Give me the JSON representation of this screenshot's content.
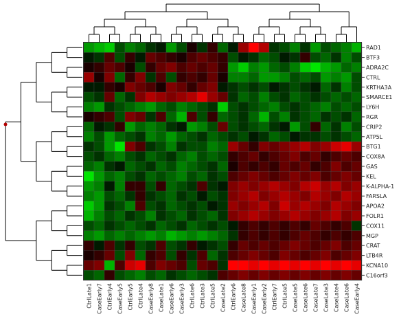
{
  "chart_data": {
    "type": "heatmap",
    "title": "",
    "xlabel": "",
    "ylabel": "",
    "columns": [
      "CtrlLate1",
      "CaseEarly7",
      "CtrlEarly4",
      "CaseEarly5",
      "CtrlEarly5",
      "CtrlLate4",
      "CaseEarly8",
      "CaseLate1",
      "CaseEarly6",
      "CaseEarly3",
      "CtrlLate6",
      "CtrlLate3",
      "CtrlLate5",
      "CaseLate2",
      "CtrlEarly6",
      "CaseLate8",
      "CaseEarly1",
      "CaseEarly2",
      "CtrlEarly7",
      "CtrlLate5",
      "CaseLate5",
      "CaseLate6",
      "CaseLate7",
      "CaseLate3",
      "CaseLate4",
      "CaseLate6",
      "CaseEarly4"
    ],
    "rows": [
      "RAD1",
      "BTF3",
      "ADRA2C",
      "CTRL",
      "KRTHA3A",
      "SMARCE1",
      "LY6H",
      "RGR",
      "CRIP2",
      "ATP5L",
      "BTG1",
      "COX8A",
      "GAS",
      "KEL",
      "K-ALPHA-1",
      "FARSLA",
      "APOA2",
      "FOLR1",
      "COX11",
      "MGP",
      "CRAT",
      "LTB4R",
      "KCNA10",
      "C16orf3"
    ],
    "color_scale": {
      "low": "#00ff00",
      "mid": "#000000",
      "high": "#ff0000"
    },
    "values": [
      [
        -0.6,
        -0.7,
        -0.8,
        -0.3,
        -0.5,
        -0.4,
        -0.2,
        -0.1,
        -0.6,
        -0.3,
        0.1,
        -0.2,
        0.2,
        -0.4,
        -0.1,
        0.6,
        1.0,
        0.7,
        -0.2,
        -0.3,
        -0.5,
        -0.2,
        -0.6,
        -0.3,
        -0.4,
        -0.5,
        -0.7
      ],
      [
        -0.1,
        -0.2,
        0.3,
        -0.3,
        0.2,
        -0.1,
        0.4,
        0.3,
        0.2,
        0.1,
        0.3,
        0.4,
        0.3,
        0.2,
        -0.3,
        -0.1,
        -0.2,
        -0.4,
        -0.3,
        -0.1,
        -0.2,
        0.2,
        -0.3,
        -0.4,
        -0.2,
        -0.5,
        -0.3
      ],
      [
        0.1,
        0.2,
        0.4,
        0.3,
        0.1,
        -0.3,
        0.2,
        0.4,
        0.5,
        0.3,
        0.4,
        0.3,
        0.4,
        0.2,
        -0.6,
        -0.8,
        -0.5,
        -0.6,
        -0.4,
        -0.3,
        -0.5,
        -0.8,
        -0.9,
        -0.7,
        -0.6,
        -0.4,
        -0.5
      ],
      [
        0.6,
        0.1,
        0.5,
        -0.4,
        0.2,
        0.5,
        -0.2,
        0.3,
        -0.3,
        0.2,
        0.3,
        0.2,
        0.4,
        0.1,
        -0.5,
        -0.5,
        -0.4,
        -0.6,
        -0.6,
        -0.5,
        -0.3,
        -0.4,
        -0.3,
        -0.6,
        -0.5,
        -0.6,
        -0.3
      ],
      [
        -0.1,
        -0.1,
        0.2,
        0.1,
        0.5,
        0.4,
        0.3,
        0.1,
        0.5,
        0.4,
        0.2,
        0.4,
        0.5,
        -0.1,
        -0.2,
        -0.3,
        -0.2,
        -0.3,
        -0.1,
        -0.2,
        -0.3,
        -0.2,
        -0.1,
        -0.4,
        -0.2,
        -0.5,
        -0.3
      ],
      [
        -0.3,
        -0.2,
        0.4,
        -0.4,
        -0.2,
        0.5,
        0.7,
        0.6,
        0.5,
        0.6,
        0.7,
        0.9,
        0.6,
        0.4,
        -0.2,
        -0.4,
        -0.3,
        -0.5,
        -0.3,
        -0.2,
        -0.4,
        -0.3,
        -0.2,
        -0.3,
        -0.4,
        -0.3,
        -0.4
      ],
      [
        -0.5,
        -0.6,
        -0.2,
        -0.3,
        -0.4,
        -0.5,
        -0.6,
        -0.4,
        -0.3,
        -0.5,
        -0.4,
        -0.3,
        -0.2,
        -0.8,
        -0.3,
        -0.2,
        -0.3,
        -0.4,
        -0.5,
        -0.3,
        -0.2,
        -0.3,
        -0.4,
        -0.5,
        -0.3,
        -0.4,
        -0.3
      ],
      [
        0.1,
        0.2,
        0.3,
        -0.3,
        0.5,
        0.4,
        -0.2,
        0.3,
        -0.4,
        -0.7,
        0.3,
        -0.3,
        0.2,
        -0.4,
        -0.3,
        -0.2,
        -0.4,
        -0.7,
        -0.3,
        -0.5,
        -0.2,
        -0.3,
        -0.4,
        -0.2,
        -0.3,
        -0.2,
        -0.4
      ],
      [
        -0.4,
        -0.1,
        -0.2,
        0.2,
        -0.6,
        -0.4,
        -0.5,
        -0.4,
        -0.2,
        -0.1,
        -0.6,
        -0.5,
        -0.3,
        0.4,
        -0.3,
        -0.2,
        -0.3,
        -0.4,
        -0.2,
        -0.1,
        -0.6,
        -0.3,
        0.2,
        -0.4,
        -0.2,
        -0.5,
        -0.3
      ],
      [
        -0.5,
        -0.3,
        -0.6,
        -0.4,
        -0.3,
        -0.2,
        -0.5,
        -0.4,
        -0.6,
        -0.4,
        -0.3,
        -0.2,
        -0.4,
        -0.3,
        -0.2,
        -0.3,
        -0.1,
        -0.2,
        -0.4,
        -0.3,
        -0.1,
        -0.2,
        -0.2,
        -0.3,
        -0.2,
        -0.3,
        -0.4
      ],
      [
        -0.2,
        -0.3,
        -0.6,
        -0.9,
        0.5,
        0.3,
        -0.2,
        -0.3,
        -0.5,
        -0.2,
        -0.3,
        -0.3,
        -0.5,
        -0.4,
        0.6,
        0.4,
        0.2,
        0.5,
        0.4,
        0.5,
        0.6,
        0.7,
        0.5,
        0.6,
        0.8,
        0.9,
        0.6
      ],
      [
        -0.3,
        -0.2,
        -0.4,
        -0.5,
        -0.3,
        -0.2,
        -0.4,
        -0.3,
        -0.2,
        -0.4,
        -0.5,
        -0.3,
        -0.4,
        -0.3,
        0.2,
        0.3,
        0.4,
        0.2,
        0.3,
        0.4,
        0.5,
        0.3,
        0.4,
        0.2,
        0.3,
        0.4,
        0.3
      ],
      [
        -0.4,
        -0.5,
        -0.2,
        -0.1,
        -0.4,
        -0.3,
        -0.2,
        -0.4,
        -0.3,
        -0.5,
        -0.4,
        -0.3,
        -0.2,
        -0.4,
        0.1,
        0.3,
        0.2,
        0.3,
        0.2,
        0.4,
        0.3,
        0.4,
        0.2,
        0.3,
        0.5,
        0.3,
        0.4
      ],
      [
        -0.9,
        -0.6,
        -0.4,
        -0.5,
        -0.3,
        -0.2,
        -0.4,
        -0.3,
        -0.4,
        -0.5,
        -0.3,
        -0.4,
        -0.2,
        -0.3,
        0.3,
        0.4,
        0.5,
        0.4,
        0.3,
        0.4,
        0.5,
        0.4,
        0.5,
        0.3,
        0.4,
        0.5,
        0.4
      ],
      [
        -0.6,
        -0.5,
        -0.1,
        -0.5,
        0.2,
        0.2,
        -0.3,
        0.2,
        -0.4,
        -0.3,
        -0.2,
        0.3,
        -0.2,
        -0.1,
        0.5,
        0.6,
        0.5,
        0.6,
        0.7,
        0.6,
        0.5,
        0.7,
        0.8,
        0.6,
        0.7,
        0.5,
        0.6
      ],
      [
        -0.5,
        -0.6,
        -0.3,
        -0.4,
        -0.2,
        0.2,
        -0.2,
        -0.3,
        -0.4,
        -0.2,
        -0.3,
        -0.1,
        -0.3,
        -0.2,
        0.5,
        0.6,
        0.7,
        0.5,
        0.6,
        0.7,
        0.6,
        0.5,
        0.7,
        0.6,
        0.5,
        0.7,
        0.6
      ],
      [
        -0.8,
        -0.6,
        -0.2,
        -0.3,
        -0.5,
        0.3,
        -0.3,
        -0.2,
        -0.4,
        -0.3,
        -0.2,
        -0.3,
        -0.1,
        -0.2,
        0.6,
        0.5,
        0.6,
        0.7,
        0.5,
        0.8,
        0.6,
        0.7,
        0.6,
        0.5,
        0.7,
        0.6,
        0.5
      ],
      [
        -0.7,
        -0.5,
        -0.3,
        -0.4,
        -0.2,
        -0.3,
        -0.5,
        -0.2,
        -0.3,
        -0.4,
        -0.2,
        -0.3,
        -0.4,
        -0.2,
        0.5,
        0.6,
        0.7,
        0.6,
        0.5,
        0.6,
        0.7,
        0.6,
        0.5,
        0.6,
        0.7,
        0.5,
        0.6
      ],
      [
        -0.3,
        -0.4,
        -0.2,
        -0.3,
        -0.4,
        -0.3,
        -0.2,
        -0.4,
        -0.3,
        -0.2,
        -0.4,
        -0.3,
        -0.2,
        -0.3,
        -0.1,
        0.2,
        0.3,
        0.2,
        0.3,
        0.2,
        0.3,
        0.2,
        0.4,
        0.3,
        0.2,
        0.3,
        -0.2
      ],
      [
        -0.5,
        -0.6,
        -0.4,
        -0.5,
        -0.4,
        -0.5,
        -0.6,
        -0.5,
        -0.7,
        -0.6,
        -0.5,
        -0.6,
        -0.5,
        -0.4,
        -0.2,
        0.2,
        0.3,
        0.2,
        0.3,
        0.2,
        0.3,
        0.4,
        0.3,
        0.2,
        0.3,
        0.2,
        0.3
      ],
      [
        0.2,
        -0.1,
        0.3,
        -0.2,
        0.2,
        -0.3,
        -0.2,
        0.3,
        -0.3,
        -0.2,
        0.2,
        -0.1,
        -0.2,
        -0.3,
        0.2,
        0.4,
        0.3,
        0.4,
        0.3,
        0.4,
        0.5,
        0.4,
        0.3,
        0.4,
        0.5,
        0.3,
        0.4
      ],
      [
        0.1,
        0.2,
        0.4,
        -0.3,
        0.5,
        -0.4,
        0.2,
        0.3,
        -0.3,
        0.2,
        -0.2,
        0.3,
        -0.4,
        -0.2,
        0.3,
        0.4,
        0.5,
        0.4,
        0.3,
        0.5,
        0.4,
        0.3,
        0.4,
        0.5,
        0.3,
        0.4,
        0.5
      ],
      [
        0.4,
        0.5,
        -0.7,
        0.3,
        0.8,
        0.9,
        0.3,
        0.5,
        0.4,
        0.3,
        -0.3,
        0.4,
        0.3,
        -0.2,
        1.0,
        1.0,
        0.9,
        1.0,
        0.9,
        1.0,
        0.9,
        1.0,
        0.9,
        1.0,
        0.9,
        1.0,
        0.9
      ],
      [
        -0.3,
        -0.4,
        0.2,
        -0.3,
        -0.4,
        -0.5,
        -0.3,
        -0.4,
        -0.2,
        -0.3,
        -0.4,
        -0.3,
        -0.2,
        0.3,
        0.4,
        0.5,
        0.4,
        0.5,
        0.4,
        0.5,
        0.4,
        0.5,
        0.4,
        0.5,
        0.4,
        0.5,
        0.4
      ]
    ]
  }
}
